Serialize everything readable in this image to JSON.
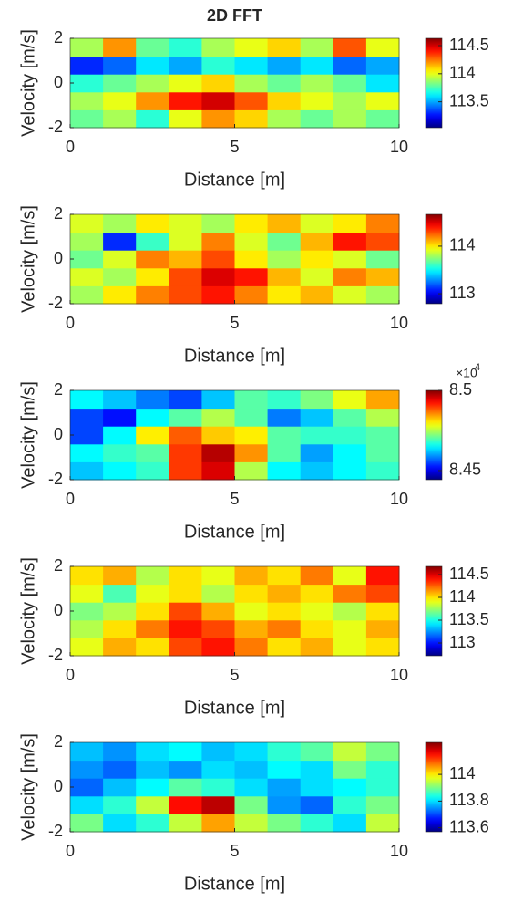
{
  "chart_data": [
    {
      "type": "heatmap",
      "title": "2D FFT",
      "xlabel": "Distance [m]",
      "ylabel": "Velocity [m/s]",
      "xlim": [
        0,
        10
      ],
      "ylim": [
        -2,
        2
      ],
      "xticks": [
        0,
        5,
        10
      ],
      "yticks": [
        -2,
        0,
        2
      ],
      "x": [
        0.5,
        1.5,
        2.5,
        3.5,
        4.5,
        5.5,
        6.5,
        7.5,
        8.5,
        9.5
      ],
      "y": [
        -1.6,
        -0.8,
        0,
        0.8,
        1.6
      ],
      "z": [
        [
          113.8,
          113.9,
          113.7,
          114.0,
          114.2,
          114.1,
          113.9,
          113.8,
          113.9,
          113.8
        ],
        [
          113.9,
          114.0,
          114.2,
          114.4,
          114.5,
          114.3,
          114.1,
          114.0,
          113.9,
          114.0
        ],
        [
          113.7,
          113.8,
          113.9,
          114.0,
          114.1,
          113.9,
          113.8,
          113.9,
          113.8,
          113.6
        ],
        [
          113.3,
          113.4,
          113.6,
          113.5,
          113.7,
          113.6,
          113.5,
          113.6,
          113.4,
          113.5
        ],
        [
          113.9,
          114.2,
          113.8,
          113.7,
          113.9,
          114.0,
          114.1,
          113.9,
          114.3,
          114.0
        ]
      ],
      "colormap": "jet",
      "clim": [
        113.04,
        114.63
      ],
      "cticks": [
        113.5,
        114,
        114.5
      ]
    },
    {
      "type": "heatmap",
      "xlabel": "Distance [m]",
      "ylabel": "Velocity [m/s]",
      "xlim": [
        0,
        10
      ],
      "ylim": [
        -2,
        2
      ],
      "xticks": [
        0,
        5,
        10
      ],
      "yticks": [
        -2,
        0,
        2
      ],
      "x": [
        0.5,
        1.5,
        2.5,
        3.5,
        4.5,
        5.5,
        6.5,
        7.5,
        8.5,
        9.5
      ],
      "y": [
        -1.6,
        -0.8,
        0,
        0.8,
        1.6
      ],
      "z": [
        [
          113.8,
          114.0,
          114.2,
          114.3,
          114.4,
          114.2,
          114.0,
          114.1,
          113.9,
          113.8
        ],
        [
          113.9,
          113.8,
          114.0,
          114.3,
          114.5,
          114.4,
          114.1,
          113.9,
          114.2,
          114.1
        ],
        [
          113.7,
          113.9,
          114.2,
          114.1,
          114.3,
          114.0,
          113.8,
          114.0,
          113.9,
          113.7
        ],
        [
          113.8,
          113.1,
          113.6,
          113.9,
          114.2,
          113.9,
          113.7,
          114.1,
          114.4,
          114.3
        ],
        [
          113.9,
          113.8,
          114.0,
          113.9,
          113.8,
          114.0,
          114.1,
          113.9,
          114.0,
          114.2
        ]
      ],
      "colormap": "jet",
      "clim": [
        112.79,
        114.67
      ],
      "cticks": [
        113,
        114
      ]
    },
    {
      "type": "heatmap",
      "xlabel": "Distance [m]",
      "ylabel": "Velocity [m/s]",
      "xlim": [
        0,
        10
      ],
      "ylim": [
        -2,
        2
      ],
      "xticks": [
        0,
        5,
        10
      ],
      "yticks": [
        -2,
        0,
        2
      ],
      "x": [
        0.5,
        1.5,
        2.5,
        3.5,
        4.5,
        5.5,
        6.5,
        7.5,
        8.5,
        9.5
      ],
      "y": [
        -1.6,
        -0.8,
        0,
        0.8,
        1.6
      ],
      "z": [
        [
          8.462,
          8.465,
          8.468,
          8.49,
          8.495,
          8.475,
          8.465,
          8.462,
          8.465,
          8.468
        ],
        [
          8.465,
          8.468,
          8.47,
          8.49,
          8.497,
          8.485,
          8.47,
          8.46,
          8.465,
          8.47
        ],
        [
          8.455,
          8.465,
          8.48,
          8.488,
          8.482,
          8.48,
          8.47,
          8.468,
          8.468,
          8.47
        ],
        [
          8.455,
          8.452,
          8.465,
          8.47,
          8.475,
          8.47,
          8.458,
          8.462,
          8.47,
          8.475
        ],
        [
          8.465,
          8.462,
          8.458,
          8.455,
          8.462,
          8.47,
          8.468,
          8.472,
          8.478,
          8.484
        ]
      ],
      "colormap": "jet",
      "clim": [
        8.4443,
        8.5
      ],
      "cticks": [
        8.45,
        8.5
      ],
      "colorbar_multiplier": {
        "base": "×10",
        "exponent": "4"
      }
    },
    {
      "type": "heatmap",
      "xlabel": "Distance [m]",
      "ylabel": "Velocity [m/s]",
      "xlim": [
        0,
        10
      ],
      "ylim": [
        -2,
        2
      ],
      "xticks": [
        0,
        5,
        10
      ],
      "yticks": [
        -2,
        0,
        2
      ],
      "x": [
        0.5,
        1.5,
        2.5,
        3.5,
        4.5,
        5.5,
        6.5,
        7.5,
        8.5,
        9.5
      ],
      "y": [
        -1.6,
        -0.8,
        0,
        0.8,
        1.6
      ],
      "z": [
        [
          113.9,
          114.1,
          114.0,
          114.3,
          114.4,
          114.2,
          114.0,
          114.1,
          113.9,
          114.0
        ],
        [
          113.8,
          114.0,
          114.2,
          114.4,
          114.3,
          114.1,
          114.2,
          114.0,
          113.9,
          114.1
        ],
        [
          113.7,
          113.8,
          114.0,
          114.3,
          114.1,
          113.9,
          114.0,
          113.9,
          113.8,
          114.0
        ],
        [
          113.9,
          113.6,
          113.9,
          114.0,
          113.8,
          114.0,
          114.1,
          114.0,
          114.2,
          114.3
        ],
        [
          114.0,
          114.1,
          113.8,
          114.0,
          113.9,
          114.1,
          114.0,
          114.2,
          113.9,
          114.4
        ]
      ],
      "colormap": "jet",
      "clim": [
        112.72,
        114.68
      ],
      "cticks": [
        113,
        113.5,
        114,
        114.5
      ]
    },
    {
      "type": "heatmap",
      "xlabel": "Distance [m]",
      "ylabel": "Velocity [m/s]",
      "xlim": [
        0,
        10
      ],
      "ylim": [
        -2,
        2
      ],
      "xticks": [
        0,
        5,
        10
      ],
      "yticks": [
        -2,
        0,
        2
      ],
      "x": [
        0.5,
        1.5,
        2.5,
        3.5,
        4.5,
        5.5,
        6.5,
        7.5,
        8.5,
        9.5
      ],
      "y": [
        -1.6,
        -0.8,
        0,
        0.8,
        1.6
      ],
      "z": [
        [
          113.9,
          113.8,
          113.85,
          113.95,
          114.05,
          113.95,
          113.9,
          113.85,
          113.8,
          113.95
        ],
        [
          113.8,
          113.85,
          113.95,
          114.15,
          114.2,
          113.9,
          113.75,
          113.72,
          113.85,
          113.9
        ],
        [
          113.72,
          113.78,
          113.82,
          113.88,
          113.85,
          113.8,
          113.76,
          113.8,
          113.82,
          113.85
        ],
        [
          113.75,
          113.72,
          113.78,
          113.75,
          113.8,
          113.78,
          113.82,
          113.8,
          113.9,
          113.85
        ],
        [
          113.78,
          113.75,
          113.8,
          113.82,
          113.78,
          113.8,
          113.85,
          113.88,
          113.95,
          113.9
        ]
      ],
      "colormap": "jet",
      "clim": [
        113.57,
        114.24
      ],
      "cticks": [
        113.6,
        113.8,
        114
      ]
    }
  ]
}
